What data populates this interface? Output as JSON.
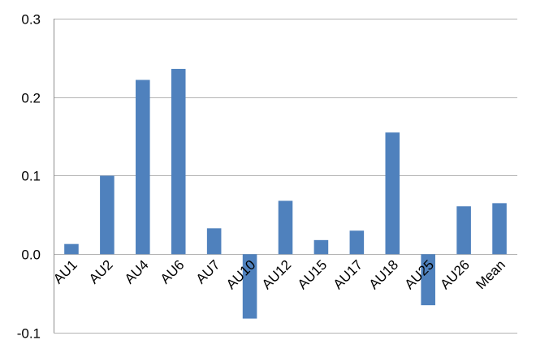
{
  "chart_data": {
    "type": "bar",
    "categories": [
      "AU1",
      "AU2",
      "AU4",
      "AU6",
      "AU7",
      "AU10",
      "AU12",
      "AU15",
      "AU17",
      "AU18",
      "AU25",
      "AU26",
      "Mean"
    ],
    "values": [
      0.013,
      0.1,
      0.222,
      0.236,
      0.033,
      -0.082,
      0.068,
      0.018,
      0.03,
      0.155,
      -0.065,
      0.061,
      0.065
    ],
    "ylim": [
      -0.1,
      0.3
    ],
    "yticks": [
      -0.1,
      0.0,
      0.1,
      0.2,
      0.3
    ],
    "ytick_labels": [
      "-0.1",
      "0.0",
      "0.1",
      "0.2",
      "0.3"
    ],
    "grid": true,
    "bar_color": "#4f81bd",
    "gridline_color": "#b3b3b3",
    "title": "",
    "xlabel": "",
    "ylabel": "",
    "legend": "none"
  }
}
